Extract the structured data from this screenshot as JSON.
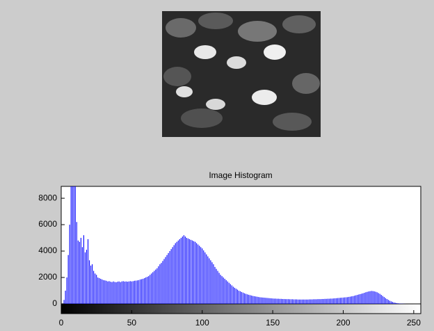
{
  "chart_data": {
    "type": "bar",
    "title": "Image Histogram",
    "color": "#0000ff",
    "xlim": [
      0,
      255
    ],
    "ylim": [
      0,
      8900
    ],
    "xticks": [
      0,
      50,
      100,
      150,
      200,
      250
    ],
    "yticks": [
      0,
      2000,
      4000,
      6000,
      8000
    ],
    "values": [
      0,
      40,
      300,
      1000,
      2000,
      3700,
      6000,
      8900,
      8900,
      8900,
      8900,
      6200,
      4800,
      4700,
      5000,
      4300,
      5200,
      3900,
      4100,
      4900,
      3300,
      2900,
      3000,
      2500,
      2300,
      2200,
      2000,
      1950,
      1900,
      1850,
      1800,
      1780,
      1750,
      1700,
      1720,
      1680,
      1650,
      1700,
      1660,
      1640,
      1680,
      1700,
      1650,
      1700,
      1720,
      1690,
      1700,
      1680,
      1700,
      1720,
      1700,
      1720,
      1750,
      1760,
      1780,
      1800,
      1850,
      1870,
      1900,
      1950,
      2000,
      2050,
      2100,
      2200,
      2300,
      2400,
      2500,
      2600,
      2700,
      2850,
      3000,
      3100,
      3250,
      3400,
      3550,
      3700,
      3850,
      4000,
      4150,
      4300,
      4450,
      4600,
      4700,
      4800,
      4900,
      5000,
      5100,
      5200,
      5100,
      5000,
      4950,
      4900,
      4850,
      4800,
      4750,
      4700,
      4600,
      4500,
      4400,
      4300,
      4200,
      4050,
      3900,
      3750,
      3600,
      3450,
      3300,
      3150,
      3000,
      2800,
      2650,
      2500,
      2350,
      2200,
      2100,
      2000,
      1900,
      1800,
      1700,
      1600,
      1500,
      1400,
      1300,
      1220,
      1150,
      1080,
      1000,
      950,
      900,
      850,
      800,
      760,
      720,
      690,
      660,
      630,
      600,
      580,
      560,
      540,
      520,
      500,
      490,
      480,
      470,
      460,
      450,
      440,
      430,
      420,
      410,
      400,
      400,
      390,
      390,
      380,
      380,
      370,
      370,
      360,
      360,
      360,
      350,
      350,
      350,
      340,
      340,
      340,
      330,
      330,
      330,
      330,
      330,
      330,
      330,
      330,
      340,
      340,
      340,
      350,
      350,
      350,
      360,
      360,
      360,
      370,
      370,
      380,
      380,
      390,
      390,
      400,
      400,
      410,
      420,
      430,
      440,
      450,
      460,
      470,
      480,
      490,
      500,
      510,
      530,
      550,
      570,
      590,
      620,
      650,
      680,
      710,
      740,
      770,
      800,
      840,
      880,
      910,
      940,
      960,
      980,
      970,
      950,
      920,
      880,
      820,
      760,
      680,
      600,
      520,
      440,
      370,
      300,
      240,
      190,
      150,
      110,
      80,
      60,
      40,
      30,
      20,
      15,
      10,
      5,
      0,
      0,
      0,
      0,
      0,
      0,
      0,
      0,
      0,
      0,
      0
    ]
  }
}
